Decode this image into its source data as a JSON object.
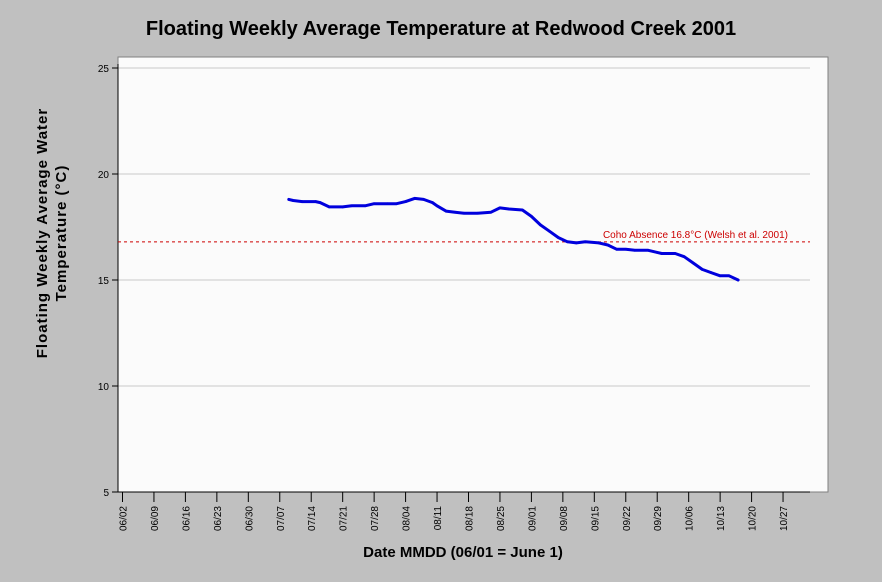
{
  "chart_data": {
    "type": "line",
    "title": "Floating Weekly Average Temperature at Redwood Creek 2001",
    "xlabel": "Date MMDD (06/01 = June 1)",
    "ylabel_lines": [
      "Floating Weekly Average Water",
      "Temperature (°C)"
    ],
    "xlim_days": [
      1,
      155
    ],
    "ylim": [
      5,
      25
    ],
    "y_ticks": [
      5,
      10,
      15,
      20,
      25
    ],
    "x_ticks": [
      {
        "label": "06/02",
        "day": 2
      },
      {
        "label": "06/09",
        "day": 9
      },
      {
        "label": "06/16",
        "day": 16
      },
      {
        "label": "06/23",
        "day": 23
      },
      {
        "label": "06/30",
        "day": 30
      },
      {
        "label": "07/07",
        "day": 37
      },
      {
        "label": "07/14",
        "day": 44
      },
      {
        "label": "07/21",
        "day": 51
      },
      {
        "label": "07/28",
        "day": 58
      },
      {
        "label": "08/04",
        "day": 65
      },
      {
        "label": "08/11",
        "day": 72
      },
      {
        "label": "08/18",
        "day": 79
      },
      {
        "label": "08/25",
        "day": 86
      },
      {
        "label": "09/01",
        "day": 93
      },
      {
        "label": "09/08",
        "day": 100
      },
      {
        "label": "09/15",
        "day": 107
      },
      {
        "label": "09/22",
        "day": 114
      },
      {
        "label": "09/29",
        "day": 121
      },
      {
        "label": "10/06",
        "day": 128
      },
      {
        "label": "10/13",
        "day": 135
      },
      {
        "label": "10/20",
        "day": 142
      },
      {
        "label": "10/27",
        "day": 149
      }
    ],
    "grid": "horizontal",
    "reference_line": {
      "y": 16.8,
      "label": "Coho Absence 16.8°C (Welsh et al. 2001)",
      "color": "#cc0000"
    },
    "series": [
      {
        "color": "#0000dd",
        "points": [
          [
            39,
            18.8
          ],
          [
            40,
            18.75
          ],
          [
            42,
            18.7
          ],
          [
            45,
            18.7
          ],
          [
            46,
            18.65
          ],
          [
            48,
            18.45
          ],
          [
            51,
            18.45
          ],
          [
            53,
            18.5
          ],
          [
            56,
            18.5
          ],
          [
            58,
            18.6
          ],
          [
            61,
            18.6
          ],
          [
            63,
            18.6
          ],
          [
            65,
            18.7
          ],
          [
            67,
            18.85
          ],
          [
            69,
            18.8
          ],
          [
            71,
            18.65
          ],
          [
            72,
            18.5
          ],
          [
            74,
            18.25
          ],
          [
            76,
            18.2
          ],
          [
            78,
            18.15
          ],
          [
            81,
            18.15
          ],
          [
            84,
            18.2
          ],
          [
            86,
            18.4
          ],
          [
            88,
            18.35
          ],
          [
            91,
            18.3
          ],
          [
            93,
            18.0
          ],
          [
            95,
            17.6
          ],
          [
            97,
            17.3
          ],
          [
            99,
            17.0
          ],
          [
            101,
            16.8
          ],
          [
            103,
            16.75
          ],
          [
            105,
            16.8
          ],
          [
            108,
            16.75
          ],
          [
            110,
            16.65
          ],
          [
            112,
            16.45
          ],
          [
            114,
            16.45
          ],
          [
            116,
            16.4
          ],
          [
            119,
            16.4
          ],
          [
            121,
            16.3
          ],
          [
            122,
            16.25
          ],
          [
            125,
            16.25
          ],
          [
            127,
            16.1
          ],
          [
            129,
            15.8
          ],
          [
            131,
            15.5
          ],
          [
            133,
            15.35
          ],
          [
            135,
            15.2
          ],
          [
            137,
            15.2
          ],
          [
            139,
            15.0
          ]
        ]
      }
    ]
  }
}
